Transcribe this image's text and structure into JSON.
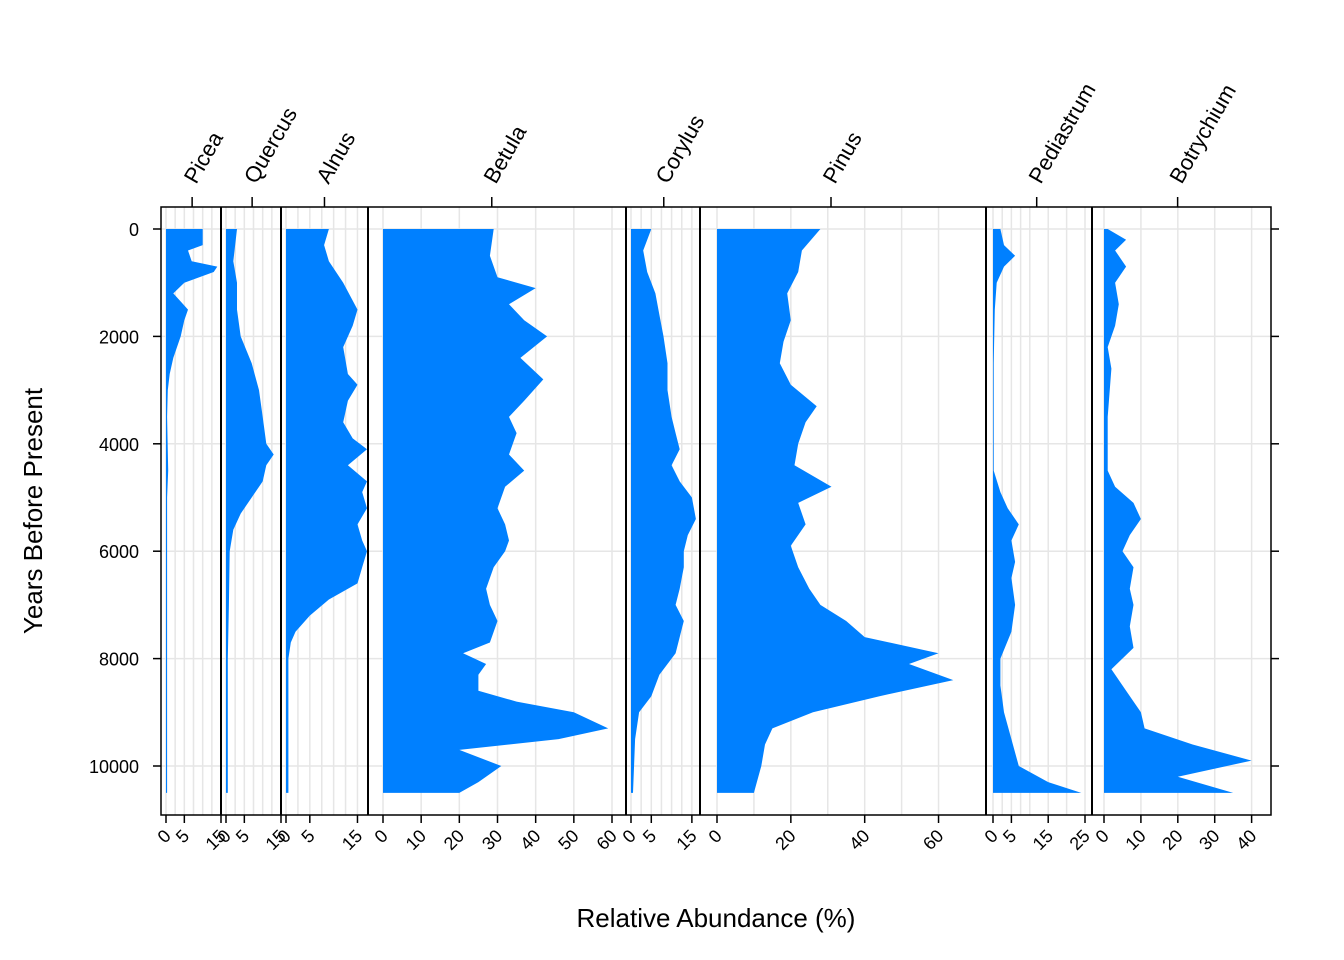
{
  "chart_data": {
    "type": "area",
    "ylabel": "Years Before Present",
    "xlabel": "Relative Abundance (%)",
    "ylim": [
      10850,
      -400
    ],
    "y_ticks": [
      0,
      2000,
      4000,
      6000,
      8000,
      10000
    ],
    "grid": true,
    "fill_color": "#0080ff",
    "panels": [
      {
        "taxon": "Picea",
        "xlim": [
          0,
          15
        ],
        "ticks": [
          0,
          5,
          15
        ],
        "gridlines": [
          0,
          2.5,
          5,
          7.5,
          10,
          12.5,
          15
        ],
        "profile": [
          [
            0,
            10
          ],
          [
            300,
            10
          ],
          [
            400,
            6
          ],
          [
            600,
            7
          ],
          [
            700,
            14
          ],
          [
            800,
            13
          ],
          [
            1000,
            5
          ],
          [
            1200,
            2
          ],
          [
            1350,
            4
          ],
          [
            1500,
            6
          ],
          [
            1700,
            5
          ],
          [
            2000,
            4
          ],
          [
            2400,
            2
          ],
          [
            2700,
            1
          ],
          [
            3000,
            0.5
          ],
          [
            3500,
            0.3
          ],
          [
            4500,
            0.6
          ],
          [
            5000,
            0.3
          ],
          [
            6000,
            0.3
          ],
          [
            8000,
            0.3
          ],
          [
            10500,
            0.3
          ]
        ]
      },
      {
        "taxon": "Quercus",
        "xlim": [
          0,
          15
        ],
        "ticks": [
          0,
          5,
          15
        ],
        "gridlines": [
          0,
          2.5,
          5,
          7.5,
          10,
          12.5,
          15
        ],
        "profile": [
          [
            0,
            3
          ],
          [
            600,
            2
          ],
          [
            1000,
            3
          ],
          [
            1500,
            3
          ],
          [
            2000,
            4
          ],
          [
            2500,
            7
          ],
          [
            3000,
            9
          ],
          [
            3500,
            10
          ],
          [
            4000,
            11
          ],
          [
            4200,
            13
          ],
          [
            4400,
            11
          ],
          [
            4700,
            10
          ],
          [
            5000,
            7
          ],
          [
            5300,
            4
          ],
          [
            5600,
            2
          ],
          [
            6000,
            1
          ],
          [
            7000,
            0.8
          ],
          [
            8000,
            0.5
          ],
          [
            9000,
            0.5
          ],
          [
            10500,
            0.5
          ]
        ]
      },
      {
        "taxon": "Alnus",
        "xlim": [
          0,
          17
        ],
        "ticks": [
          0,
          5,
          15
        ],
        "gridlines": [
          0,
          2.5,
          5,
          7.5,
          10,
          12.5,
          15
        ],
        "profile": [
          [
            0,
            9
          ],
          [
            300,
            8
          ],
          [
            600,
            9
          ],
          [
            1000,
            12
          ],
          [
            1500,
            15
          ],
          [
            1800,
            14
          ],
          [
            2200,
            12
          ],
          [
            2700,
            13
          ],
          [
            2900,
            15
          ],
          [
            3200,
            13
          ],
          [
            3600,
            12
          ],
          [
            3900,
            14
          ],
          [
            4100,
            17
          ],
          [
            4400,
            13
          ],
          [
            4700,
            17
          ],
          [
            4900,
            16
          ],
          [
            5200,
            17
          ],
          [
            5500,
            15
          ],
          [
            5800,
            16
          ],
          [
            6000,
            17
          ],
          [
            6300,
            16
          ],
          [
            6600,
            15
          ],
          [
            6900,
            9
          ],
          [
            7200,
            5
          ],
          [
            7500,
            2
          ],
          [
            7700,
            1
          ],
          [
            8000,
            0.5
          ],
          [
            10500,
            0.5
          ]
        ]
      },
      {
        "taxon": "Betula",
        "xlim": [
          0,
          60
        ],
        "ticks": [
          0,
          10,
          20,
          30,
          40,
          50,
          60
        ],
        "gridlines": [
          0,
          10,
          20,
          30,
          40,
          50,
          60
        ],
        "profile": [
          [
            0,
            29
          ],
          [
            500,
            28
          ],
          [
            900,
            30
          ],
          [
            1100,
            40
          ],
          [
            1400,
            33
          ],
          [
            1700,
            37
          ],
          [
            2000,
            43
          ],
          [
            2400,
            36
          ],
          [
            2800,
            42
          ],
          [
            3200,
            37
          ],
          [
            3500,
            33
          ],
          [
            3800,
            35
          ],
          [
            4200,
            33
          ],
          [
            4500,
            37
          ],
          [
            4800,
            32
          ],
          [
            5200,
            30
          ],
          [
            5500,
            32
          ],
          [
            5800,
            33
          ],
          [
            6000,
            32
          ],
          [
            6300,
            29
          ],
          [
            6700,
            27
          ],
          [
            7000,
            28
          ],
          [
            7300,
            30
          ],
          [
            7700,
            28
          ],
          [
            7900,
            21
          ],
          [
            8100,
            27
          ],
          [
            8300,
            25
          ],
          [
            8600,
            25
          ],
          [
            8800,
            35
          ],
          [
            9000,
            50
          ],
          [
            9300,
            59
          ],
          [
            9500,
            46
          ],
          [
            9700,
            20
          ],
          [
            10000,
            31
          ],
          [
            10300,
            25
          ],
          [
            10500,
            20
          ]
        ]
      },
      {
        "taxon": "Corylus",
        "xlim": [
          0,
          17
        ],
        "ticks": [
          0,
          5,
          15
        ],
        "gridlines": [
          0,
          2.5,
          5,
          7.5,
          10,
          12.5,
          15
        ],
        "profile": [
          [
            0,
            5
          ],
          [
            400,
            3
          ],
          [
            800,
            4
          ],
          [
            1200,
            6
          ],
          [
            1600,
            7
          ],
          [
            2000,
            8
          ],
          [
            2500,
            9
          ],
          [
            3000,
            9
          ],
          [
            3500,
            10
          ],
          [
            3800,
            11
          ],
          [
            4100,
            12
          ],
          [
            4400,
            10
          ],
          [
            4700,
            12
          ],
          [
            5000,
            15
          ],
          [
            5400,
            16
          ],
          [
            5700,
            14
          ],
          [
            6000,
            13
          ],
          [
            6300,
            13
          ],
          [
            6700,
            12
          ],
          [
            7000,
            11
          ],
          [
            7300,
            13
          ],
          [
            7600,
            12
          ],
          [
            7900,
            11
          ],
          [
            8300,
            7
          ],
          [
            8700,
            5
          ],
          [
            9000,
            2
          ],
          [
            9500,
            1
          ],
          [
            10500,
            0.5
          ]
        ]
      },
      {
        "taxon": "Pinus",
        "xlim": [
          0,
          65
        ],
        "ticks": [
          0,
          20,
          40,
          60
        ],
        "gridlines": [
          0,
          10,
          20,
          30,
          40,
          50,
          60
        ],
        "profile": [
          [
            0,
            28
          ],
          [
            400,
            23
          ],
          [
            800,
            22
          ],
          [
            1200,
            19
          ],
          [
            1700,
            20
          ],
          [
            2100,
            18
          ],
          [
            2500,
            17
          ],
          [
            2900,
            20
          ],
          [
            3300,
            27
          ],
          [
            3600,
            24
          ],
          [
            4000,
            22
          ],
          [
            4400,
            21
          ],
          [
            4800,
            31
          ],
          [
            5100,
            22
          ],
          [
            5500,
            24
          ],
          [
            5900,
            20
          ],
          [
            6300,
            22
          ],
          [
            6700,
            25
          ],
          [
            7000,
            28
          ],
          [
            7300,
            35
          ],
          [
            7600,
            40
          ],
          [
            7900,
            60
          ],
          [
            8100,
            52
          ],
          [
            8400,
            64
          ],
          [
            8700,
            44
          ],
          [
            9000,
            26
          ],
          [
            9300,
            15
          ],
          [
            9600,
            13
          ],
          [
            10000,
            12
          ],
          [
            10500,
            10
          ]
        ]
      },
      {
        "taxon": "Pediastrum",
        "xlim": [
          0,
          25
        ],
        "ticks": [
          0,
          5,
          15,
          25
        ],
        "gridlines": [
          0,
          2.5,
          5,
          7.5,
          10,
          15,
          20,
          25
        ],
        "profile": [
          [
            0,
            2
          ],
          [
            300,
            3
          ],
          [
            500,
            6
          ],
          [
            700,
            3
          ],
          [
            1000,
            1
          ],
          [
            1500,
            0.5
          ],
          [
            2500,
            0.2
          ],
          [
            4500,
            0.2
          ],
          [
            4900,
            2
          ],
          [
            5200,
            4
          ],
          [
            5500,
            7
          ],
          [
            5800,
            5
          ],
          [
            6200,
            6
          ],
          [
            6500,
            5
          ],
          [
            7000,
            6
          ],
          [
            7500,
            5
          ],
          [
            8000,
            2
          ],
          [
            8500,
            2
          ],
          [
            9000,
            3
          ],
          [
            9500,
            5
          ],
          [
            10000,
            7
          ],
          [
            10300,
            15
          ],
          [
            10500,
            24
          ]
        ]
      },
      {
        "taxon": "Botrychium",
        "xlim": [
          0,
          42
        ],
        "ticks": [
          0,
          10,
          20,
          30,
          40
        ],
        "gridlines": [
          0,
          10,
          20,
          30,
          40
        ],
        "profile": [
          [
            0,
            1
          ],
          [
            200,
            6
          ],
          [
            400,
            3
          ],
          [
            700,
            6
          ],
          [
            1000,
            3
          ],
          [
            1400,
            4
          ],
          [
            1800,
            3
          ],
          [
            2200,
            1
          ],
          [
            2600,
            2
          ],
          [
            3500,
            1
          ],
          [
            4500,
            1
          ],
          [
            4800,
            3
          ],
          [
            5100,
            8
          ],
          [
            5400,
            10
          ],
          [
            5700,
            7
          ],
          [
            6000,
            5
          ],
          [
            6300,
            8
          ],
          [
            6700,
            7
          ],
          [
            7000,
            8
          ],
          [
            7400,
            7
          ],
          [
            7800,
            8
          ],
          [
            8200,
            2
          ],
          [
            8600,
            6
          ],
          [
            9000,
            10
          ],
          [
            9300,
            11
          ],
          [
            9600,
            24
          ],
          [
            9900,
            40
          ],
          [
            10200,
            20
          ],
          [
            10500,
            35
          ]
        ]
      }
    ]
  }
}
